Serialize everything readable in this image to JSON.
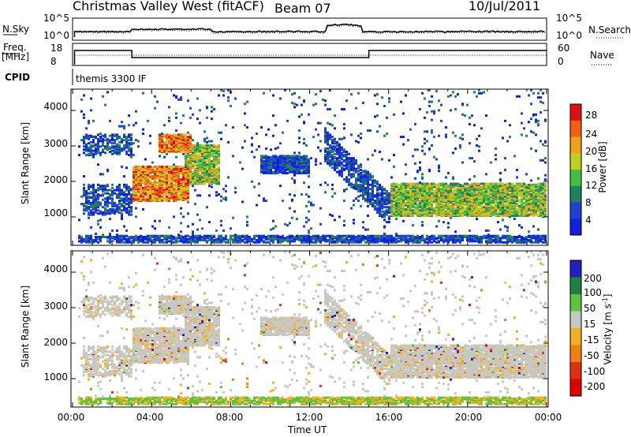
{
  "header": {
    "title": "Christmas Valley West (fitACF)",
    "beam": "Beam 07",
    "date": "10/Jul/2011"
  },
  "panels": {
    "nsky": {
      "label": "N.Sky",
      "ticks": [
        "10^5",
        "10^0"
      ]
    },
    "nsearch": {
      "label": "N.Search",
      "ticks": [
        "10^5",
        "10^0"
      ]
    },
    "freq": {
      "label_line1": "Freq.",
      "label_line2": "[MHz]",
      "ticks": [
        "18",
        "8"
      ]
    },
    "nave": {
      "label": "Nave",
      "ticks": [
        "60",
        "0"
      ]
    },
    "cpid": {
      "label": "CPID",
      "value": "themis 3300 IF"
    }
  },
  "colors": {
    "power": [
      "#1020e0",
      "#2040d0",
      "#208060",
      "#40c040",
      "#c0d020",
      "#f0a020",
      "#f06010",
      "#e01010"
    ],
    "velocity": [
      "#2020c0",
      "#208040",
      "#60c040",
      "#c8c8c0",
      "#f0b020",
      "#f08010",
      "#e03010",
      "#e00000"
    ]
  },
  "chart_data": [
    {
      "type": "heatmap",
      "panel": "power",
      "xlabel": "",
      "ylabel": "Slant Range [km]",
      "yticks": [
        "4000",
        "3000",
        "2000",
        "1000"
      ],
      "ylim": [
        200,
        4600
      ],
      "xlim": [
        0,
        24
      ],
      "colorbar": {
        "label": "Power [dB]",
        "ticks": [
          "28",
          "24",
          "20",
          "16",
          "12",
          "8",
          "4"
        ]
      },
      "features": [
        {
          "t": [
            3.0,
            5.8
          ],
          "range": [
            1400,
            2400
          ],
          "level": "high"
        },
        {
          "t": [
            4.3,
            6.0
          ],
          "range": [
            2800,
            3300
          ],
          "level": "high"
        },
        {
          "t": [
            5.6,
            7.4
          ],
          "range": [
            1900,
            3000
          ],
          "level": "mid"
        },
        {
          "t": [
            16.0,
            24.0
          ],
          "range": [
            1000,
            1900
          ],
          "level": "mid"
        },
        {
          "t": [
            9.5,
            12.0
          ],
          "range": [
            2200,
            2700
          ],
          "level": "low"
        }
      ]
    },
    {
      "type": "heatmap",
      "panel": "velocity",
      "xlabel": "Time UT",
      "ylabel": "Slant Range [km]",
      "yticks": [
        "4000",
        "3000",
        "2000",
        "1000"
      ],
      "xticks": [
        "00:00",
        "04:00",
        "08:00",
        "12:00",
        "16:00",
        "20:00",
        "00:00"
      ],
      "ylim": [
        200,
        4600
      ],
      "xlim": [
        0,
        24
      ],
      "colorbar": {
        "label": "Velocity [m s^-1]",
        "ticks": [
          "200",
          "100",
          "50",
          "15",
          "-15",
          "-50",
          "-100",
          "-200"
        ]
      }
    }
  ],
  "axis": {
    "xticks": [
      "00:00",
      "04:00",
      "08:00",
      "12:00",
      "16:00",
      "20:00",
      "00:00"
    ],
    "xlabel": "Time UT",
    "ylabel": "Slant Range [km]",
    "yticks": [
      "4000",
      "3000",
      "2000",
      "1000"
    ],
    "power_cbar_label": "Power [dB]",
    "power_cbar_ticks": [
      "28",
      "24",
      "20",
      "16",
      "12",
      "8",
      "4"
    ],
    "vel_cbar_label": "Velocity [m s",
    "vel_cbar_sup": "-1",
    "vel_cbar_close": "]",
    "vel_cbar_ticks": [
      "200",
      "100",
      "50",
      "15",
      "-15",
      "-50",
      "-100",
      "-200"
    ]
  }
}
